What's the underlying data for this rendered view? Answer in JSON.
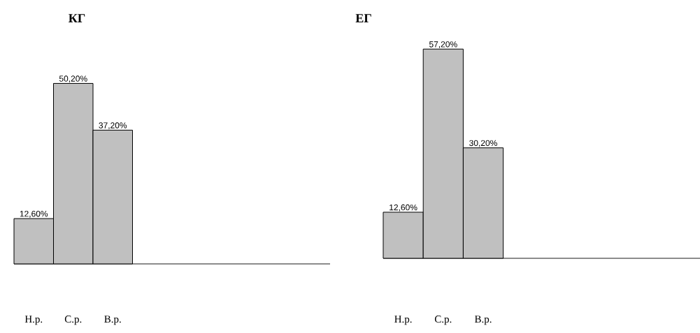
{
  "chart_data": [
    {
      "type": "bar",
      "title": "КГ",
      "categories": [
        "Н.р.",
        "С.р.",
        "В.р."
      ],
      "values": [
        12.6,
        50.2,
        37.2
      ],
      "value_labels": [
        "12,60%",
        "50,20%",
        "37,20%"
      ],
      "color": "#c0c0c0"
    },
    {
      "type": "bar",
      "title": "ЕГ",
      "categories": [
        "Н.р.",
        "С.р.",
        "В.р."
      ],
      "values": [
        12.6,
        57.2,
        30.2
      ],
      "value_labels": [
        "12,60%",
        "57,20%",
        "30,20%"
      ],
      "color": "#c0c0c0"
    }
  ]
}
